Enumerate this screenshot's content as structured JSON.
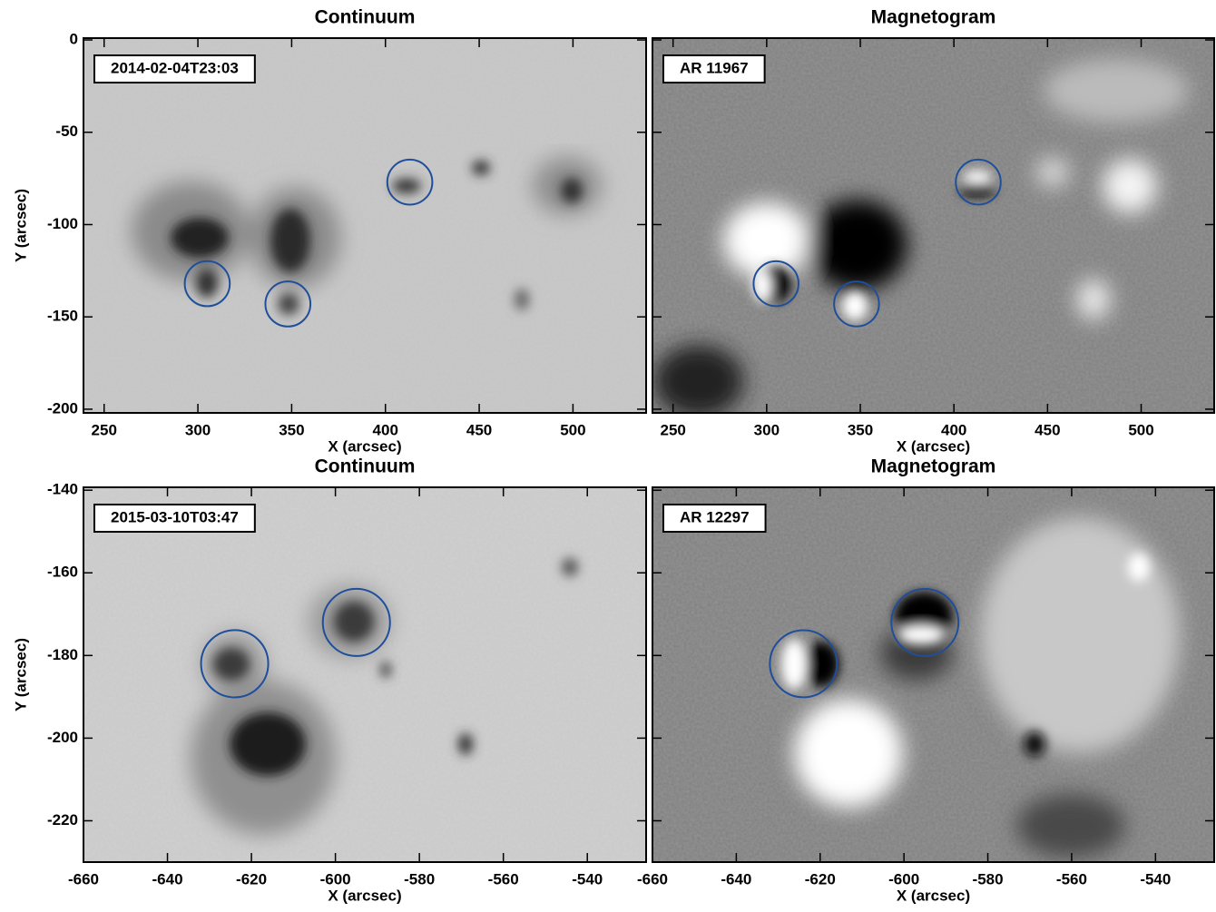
{
  "chart_data": [
    {
      "type": "image",
      "title": "Continuum",
      "xlabel": "X (arcsec)",
      "ylabel": "Y (arcsec)",
      "label": "2014-02-04T23:03",
      "xlim": [
        239,
        539
      ],
      "ylim": [
        -202,
        1
      ],
      "xticks": [
        250,
        300,
        350,
        400,
        450,
        500
      ],
      "yticks": [
        0,
        -50,
        -100,
        -150,
        -200
      ],
      "circles": [
        {
          "x": 305,
          "y": -132,
          "r": 12
        },
        {
          "x": 348,
          "y": -143,
          "r": 12
        },
        {
          "x": 413,
          "y": -77,
          "r": 12
        }
      ],
      "color": "#1f4e9a"
    },
    {
      "type": "image",
      "title": "Magnetogram",
      "xlabel": "X (arcsec)",
      "label": "AR 11967",
      "xlim": [
        239,
        539
      ],
      "ylim": [
        -202,
        1
      ],
      "xticks": [
        250,
        300,
        350,
        400,
        450,
        500
      ],
      "yticks": [
        0,
        -50,
        -100,
        -150,
        -200
      ],
      "circles": [
        {
          "x": 305,
          "y": -132,
          "r": 12
        },
        {
          "x": 348,
          "y": -143,
          "r": 12
        },
        {
          "x": 413,
          "y": -77,
          "r": 12
        }
      ],
      "color": "#1f4e9a"
    },
    {
      "type": "image",
      "title": "Continuum",
      "xlabel": "X (arcsec)",
      "ylabel": "Y (arcsec)",
      "label": "2015-03-10T03:47",
      "xlim": [
        -660,
        -526
      ],
      "ylim": [
        -230,
        -139.3
      ],
      "xticks": [
        -660,
        -640,
        -620,
        -600,
        -580,
        -560,
        -540
      ],
      "yticks": [
        -140,
        -160,
        -180,
        -200,
        -220
      ],
      "circles": [
        {
          "x": -624,
          "y": -182,
          "r": 8
        },
        {
          "x": -595,
          "y": -172,
          "r": 8
        }
      ],
      "color": "#1f4e9a"
    },
    {
      "type": "image",
      "title": "Magnetogram",
      "xlabel": "X (arcsec)",
      "label": "AR 12297",
      "xlim": [
        -660,
        -526
      ],
      "ylim": [
        -230,
        -139.3
      ],
      "xticks": [
        -660,
        -640,
        -620,
        -600,
        -580,
        -560,
        -540
      ],
      "yticks": [
        -140,
        -160,
        -180,
        -200,
        -220
      ],
      "circles": [
        {
          "x": -624,
          "y": -182,
          "r": 8
        },
        {
          "x": -595,
          "y": -172,
          "r": 8
        }
      ],
      "color": "#1f4e9a"
    }
  ]
}
